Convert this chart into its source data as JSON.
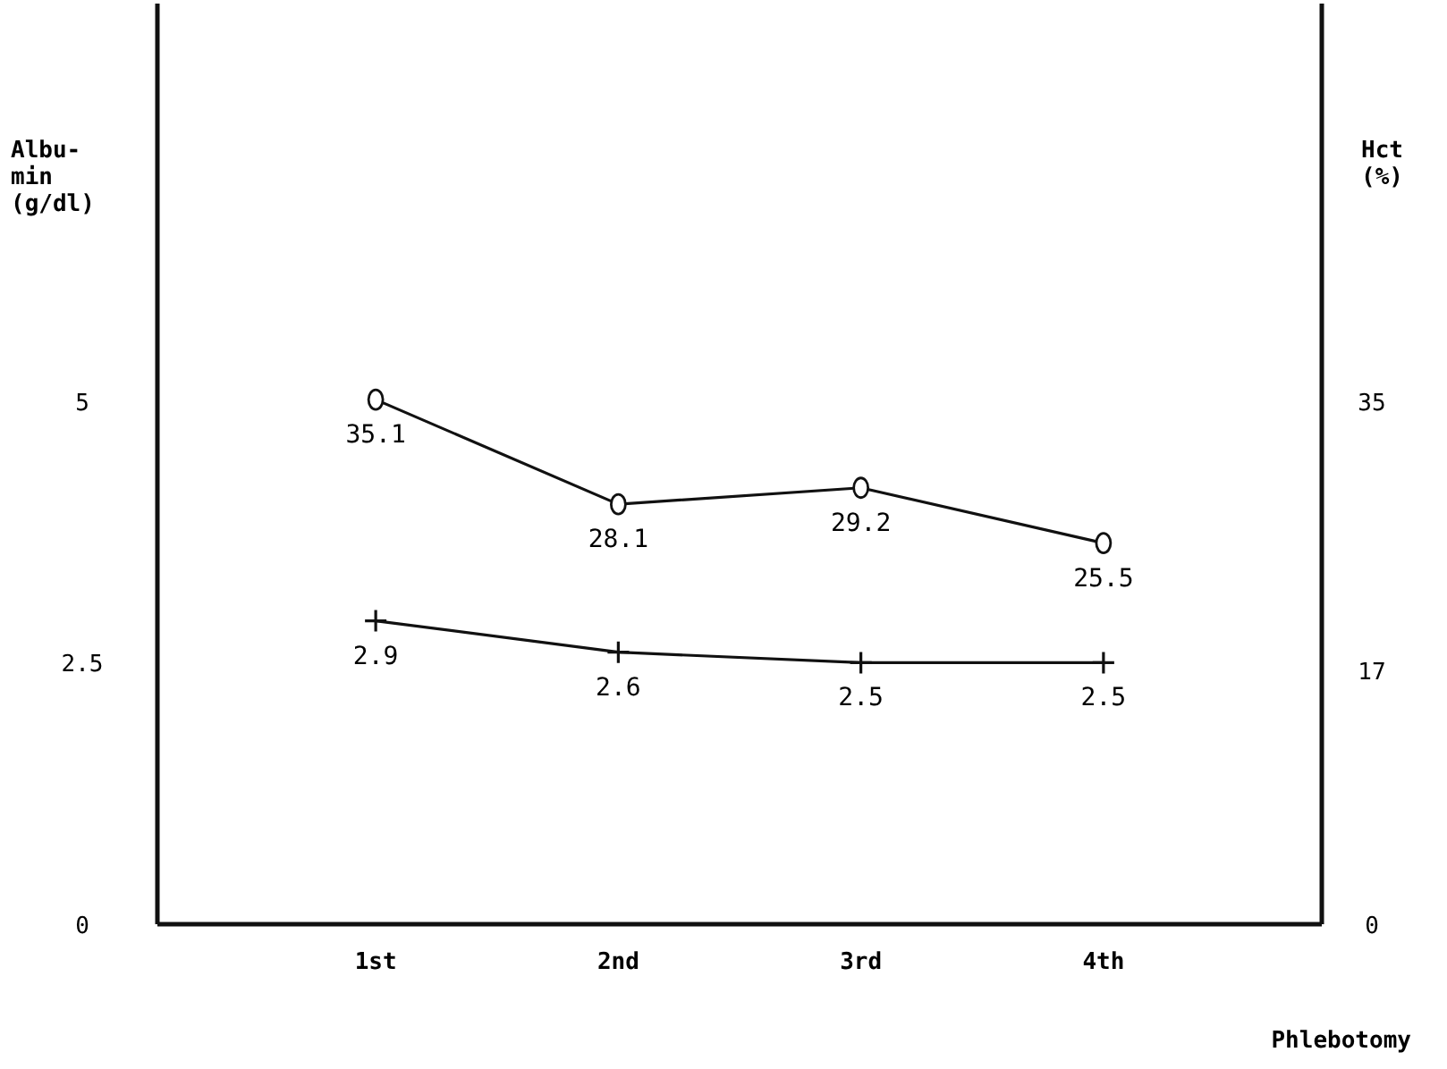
{
  "chart_data": {
    "type": "line",
    "xlabel": "Phlebotomy",
    "ylabel": "Albu-\nmin\n(g/dl)",
    "y2label": "Hct\n(%)",
    "categories": [
      "1st",
      "2nd",
      "3rd",
      "4th"
    ],
    "series": [
      {
        "color": "#111111",
        "marker": "circle",
        "axis": "y2",
        "values": [
          35.1,
          28.1,
          29.2,
          25.5
        ]
      },
      {
        "color": "#111111",
        "marker": "cross",
        "values": [
          2.9,
          2.6,
          2.5,
          2.5
        ]
      }
    ],
    "ylim": [
      0,
      8.8
    ],
    "yticks": [
      0,
      2.5,
      5
    ],
    "y2lim": [
      0,
      61.6
    ],
    "y2ticks": [
      0,
      17,
      35
    ],
    "data_labels": true,
    "grid": false
  }
}
